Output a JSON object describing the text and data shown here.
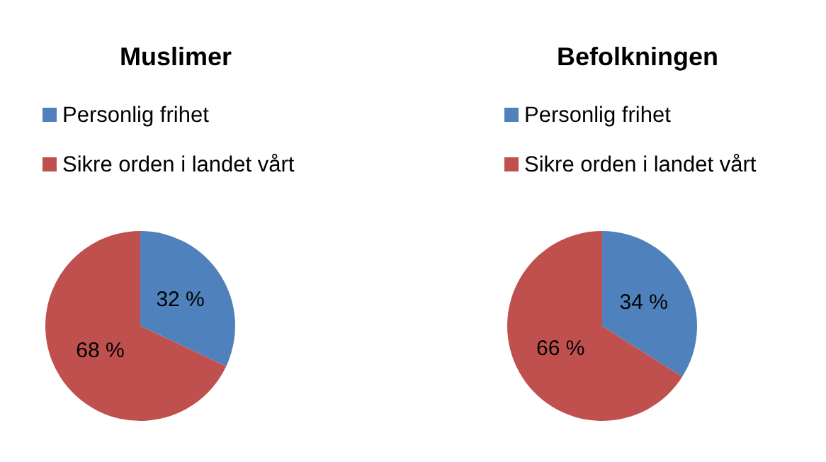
{
  "chart_data": [
    {
      "type": "pie",
      "title": "Muslimer",
      "categories": [
        "Personlig frihet",
        "Sikre orden i landet vårt"
      ],
      "values": [
        32,
        68
      ],
      "colors": [
        "#4f81bd",
        "#c0504d"
      ],
      "value_labels": [
        "32 %",
        "68 %"
      ],
      "legend": "top"
    },
    {
      "type": "pie",
      "title": "Befolkningen",
      "categories": [
        "Personlig frihet",
        "Sikre orden i landet vårt"
      ],
      "values": [
        34,
        66
      ],
      "colors": [
        "#4f81bd",
        "#c0504d"
      ],
      "value_labels": [
        "34 %",
        "66 %"
      ],
      "legend": "top"
    }
  ]
}
